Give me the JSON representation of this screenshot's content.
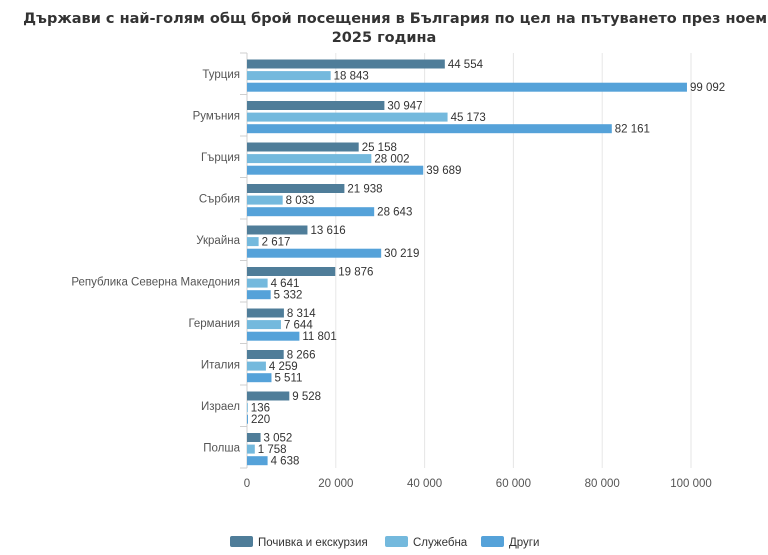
{
  "colors": {
    "series1": "#4f7d99",
    "series2": "#74b9dd",
    "series3": "#55a2d9",
    "grid": "#e6e6e6",
    "axis": "#cfcfcf"
  },
  "chart_data": {
    "type": "bar",
    "orientation": "horizontal",
    "title_line1": "Държави с най-голям общ брой посещения в България по цел на пътуването през ноември",
    "title_line2": "2025 година",
    "categories": [
      "Турция",
      "Румъния",
      "Гърция",
      "Сърбия",
      "Украйна",
      "Република Северна Македония",
      "Германия",
      "Италия",
      "Израел",
      "Полша"
    ],
    "series": [
      {
        "name": "Почивка и екскурзия",
        "values": [
          44554,
          30947,
          25158,
          21938,
          13616,
          19876,
          8314,
          8266,
          9528,
          3052
        ],
        "labels": [
          "44 554",
          "30 947",
          "25 158",
          "21 938",
          "13 616",
          "19 876",
          "8 314",
          "8 266",
          "9 528",
          "3 052"
        ]
      },
      {
        "name": "Служебна",
        "values": [
          18843,
          45173,
          28002,
          8033,
          2617,
          4641,
          7644,
          4259,
          136,
          1758
        ],
        "labels": [
          "18 843",
          "45 173",
          "28 002",
          "8 033",
          "2 617",
          "4 641",
          "7 644",
          "4 259",
          "136",
          "1 758"
        ]
      },
      {
        "name": "Други",
        "values": [
          99092,
          82161,
          39689,
          28643,
          30219,
          5332,
          11801,
          5511,
          220,
          4638
        ],
        "labels": [
          "99 092",
          "82 161",
          "39 689",
          "28 643",
          "30 219",
          "5 332",
          "11 801",
          "5 511",
          "220",
          "4 638"
        ]
      }
    ],
    "xlim": [
      0,
      100000
    ],
    "xticks": [
      0,
      20000,
      40000,
      60000,
      80000,
      100000
    ],
    "xtick_labels": [
      "0",
      "20 000",
      "40 000",
      "60 000",
      "80 000",
      "100 000"
    ],
    "legend_position": "bottom-center",
    "grid": true
  }
}
